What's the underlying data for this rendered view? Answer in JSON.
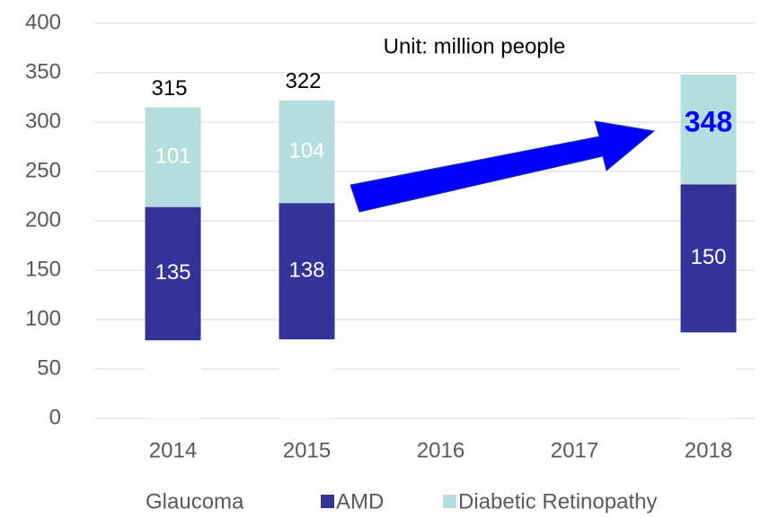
{
  "chart_data": {
    "type": "stacked_bar",
    "annotation": "Unit: million people",
    "categories": [
      "2014",
      "2015",
      "2016",
      "2017",
      "2018"
    ],
    "series": [
      {
        "name": "Glaucoma",
        "color": "#ffffff",
        "values": [
          79,
          80,
          null,
          null,
          87
        ]
      },
      {
        "name": "AMD",
        "color": "#333399",
        "values": [
          135,
          138,
          null,
          null,
          150
        ],
        "value_labels": [
          "135",
          "138",
          null,
          null,
          "150"
        ]
      },
      {
        "name": "Diabetic Retinopathy",
        "color": "#b4dde0",
        "values": [
          101,
          104,
          null,
          null,
          111
        ],
        "value_labels": [
          "101",
          "104",
          null,
          null,
          null
        ]
      }
    ],
    "total_labels": [
      "315",
      "322",
      null,
      null,
      "348"
    ],
    "ylim": [
      0,
      400
    ],
    "yticks": [
      0,
      50,
      100,
      150,
      200,
      250,
      300,
      350,
      400
    ],
    "grid": true,
    "legend": "bottom"
  }
}
